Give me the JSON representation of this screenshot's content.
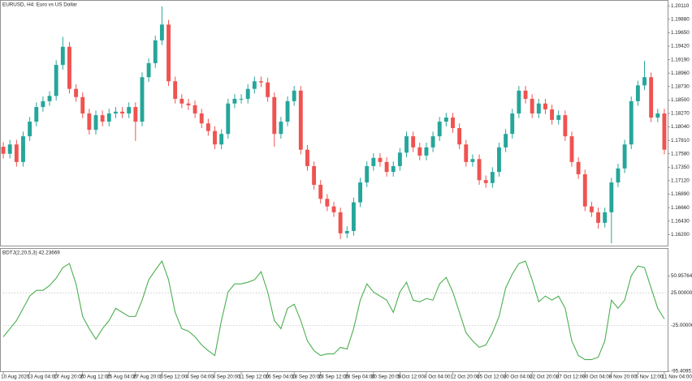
{
  "chart_data": [
    {
      "type": "candlestick",
      "title": "EURUSD, H4:  Euro vs US Dollar",
      "up_color": "#26a69a",
      "down_color": "#ef5350",
      "ylim": [
        1.1601,
        1.2021
      ],
      "yticks": [
        {
          "value": 1.2011,
          "label": "1.20110"
        },
        {
          "value": 1.1988,
          "label": "1.19880"
        },
        {
          "value": 1.1965,
          "label": "1.19650"
        },
        {
          "value": 1.1942,
          "label": "1.19420"
        },
        {
          "value": 1.1919,
          "label": "1.19190"
        },
        {
          "value": 1.1896,
          "label": "1.18960"
        },
        {
          "value": 1.1873,
          "label": "1.18730"
        },
        {
          "value": 1.185,
          "label": "1.18500"
        },
        {
          "value": 1.1827,
          "label": "1.18270"
        },
        {
          "value": 1.1804,
          "label": "1.18040"
        },
        {
          "value": 1.1781,
          "label": "1.17810"
        },
        {
          "value": 1.1758,
          "label": "1.17580"
        },
        {
          "value": 1.1735,
          "label": "1.17350"
        },
        {
          "value": 1.1712,
          "label": "1.17120"
        },
        {
          "value": 1.1689,
          "label": "1.16890"
        },
        {
          "value": 1.1666,
          "label": "1.16660"
        },
        {
          "value": 1.1643,
          "label": "1.16430"
        },
        {
          "value": 1.162,
          "label": "1.16200"
        }
      ],
      "open": [
        1.177,
        1.1758,
        1.1774,
        1.1744,
        1.1788,
        1.1813,
        1.1838,
        1.1848,
        1.1857,
        1.191,
        1.1941,
        1.1869,
        1.1855,
        1.1827,
        1.1799,
        1.1824,
        1.1813,
        1.1827,
        1.183,
        1.1827,
        1.1838,
        1.1813,
        1.1889,
        1.1913,
        1.1952,
        1.1979,
        1.1882,
        1.1852,
        1.1844,
        1.1841,
        1.1827,
        1.181,
        1.1797,
        1.1774,
        1.1792,
        1.1844,
        1.1852,
        1.1852,
        1.1869,
        1.1882,
        1.188,
        1.1855,
        1.1792,
        1.1813,
        1.1848,
        1.1866,
        1.1765,
        1.1737,
        1.1705,
        1.1681,
        1.1668,
        1.1658,
        1.1622,
        1.1626,
        1.1675,
        1.1709,
        1.1737,
        1.1751,
        1.1744,
        1.1727,
        1.1737,
        1.176,
        1.1788,
        1.1769,
        1.1755,
        1.1769,
        1.1788,
        1.1813,
        1.182,
        1.1802,
        1.1774,
        1.1744,
        1.1749,
        1.1713,
        1.1708,
        1.1727,
        1.1769,
        1.1792,
        1.1827,
        1.1866,
        1.1852,
        1.1827,
        1.1844,
        1.1834,
        1.1816,
        1.1824,
        1.1788,
        1.1744,
        1.1723,
        1.1668,
        1.1658,
        1.164,
        1.1658,
        1.1709,
        1.1733,
        1.1774,
        1.1848,
        1.1875,
        1.1889,
        1.182,
        1.1827
      ],
      "high": [
        1.1778,
        1.1782,
        1.1782,
        1.1796,
        1.1821,
        1.1846,
        1.1856,
        1.1865,
        1.1918,
        1.1958,
        1.1949,
        1.1877,
        1.1863,
        1.1835,
        1.1832,
        1.1832,
        1.1835,
        1.1838,
        1.1838,
        1.1846,
        1.1846,
        1.1897,
        1.1921,
        1.196,
        1.201,
        1.1987,
        1.189,
        1.186,
        1.1852,
        1.1849,
        1.1835,
        1.1818,
        1.1805,
        1.18,
        1.1852,
        1.186,
        1.186,
        1.1877,
        1.189,
        1.189,
        1.1888,
        1.1863,
        1.1821,
        1.1856,
        1.1874,
        1.1874,
        1.1773,
        1.1745,
        1.1713,
        1.1689,
        1.1676,
        1.1666,
        1.1634,
        1.1683,
        1.1717,
        1.1745,
        1.1759,
        1.1759,
        1.1752,
        1.1745,
        1.1768,
        1.1796,
        1.1796,
        1.1777,
        1.1777,
        1.1796,
        1.1821,
        1.1828,
        1.1828,
        1.181,
        1.1782,
        1.1757,
        1.1757,
        1.1721,
        1.1735,
        1.1777,
        1.18,
        1.1835,
        1.1874,
        1.1874,
        1.186,
        1.1852,
        1.1852,
        1.1842,
        1.1832,
        1.1832,
        1.1796,
        1.1752,
        1.1731,
        1.1676,
        1.1666,
        1.1666,
        1.1717,
        1.1741,
        1.1782,
        1.1856,
        1.1883,
        1.1917,
        1.1897,
        1.1835,
        1.1835
      ],
      "low": [
        1.175,
        1.175,
        1.1736,
        1.1736,
        1.178,
        1.1805,
        1.183,
        1.184,
        1.1849,
        1.1902,
        1.1861,
        1.1847,
        1.1819,
        1.1791,
        1.1791,
        1.1805,
        1.1805,
        1.1819,
        1.1819,
        1.1819,
        1.178,
        1.1805,
        1.1881,
        1.1905,
        1.1944,
        1.1874,
        1.1844,
        1.1836,
        1.1833,
        1.1819,
        1.1802,
        1.1789,
        1.1766,
        1.1766,
        1.1784,
        1.1836,
        1.1844,
        1.1844,
        1.1861,
        1.1872,
        1.1847,
        1.177,
        1.1784,
        1.1805,
        1.184,
        1.1757,
        1.1729,
        1.1697,
        1.1673,
        1.166,
        1.165,
        1.1612,
        1.1614,
        1.1618,
        1.1667,
        1.1701,
        1.1729,
        1.1736,
        1.1719,
        1.1719,
        1.1729,
        1.1752,
        1.1761,
        1.1747,
        1.1747,
        1.1761,
        1.178,
        1.1805,
        1.1794,
        1.1766,
        1.1736,
        1.1736,
        1.1705,
        1.17,
        1.17,
        1.1719,
        1.1761,
        1.1784,
        1.1819,
        1.1844,
        1.1819,
        1.1819,
        1.1826,
        1.1808,
        1.1808,
        1.178,
        1.1736,
        1.1715,
        1.166,
        1.165,
        1.163,
        1.1632,
        1.1605,
        1.1701,
        1.1725,
        1.1766,
        1.184,
        1.1867,
        1.1812,
        1.1812,
        1.1757
      ],
      "close": [
        1.1758,
        1.1774,
        1.1744,
        1.1788,
        1.1813,
        1.1838,
        1.1848,
        1.1857,
        1.191,
        1.1941,
        1.1869,
        1.1855,
        1.1827,
        1.1799,
        1.1824,
        1.1813,
        1.1827,
        1.183,
        1.1827,
        1.1838,
        1.1813,
        1.1889,
        1.1913,
        1.1952,
        1.1979,
        1.1882,
        1.1852,
        1.1844,
        1.1841,
        1.1827,
        1.181,
        1.1797,
        1.1774,
        1.1792,
        1.1844,
        1.1852,
        1.1852,
        1.1869,
        1.1882,
        1.188,
        1.1855,
        1.1792,
        1.1813,
        1.1848,
        1.1866,
        1.1765,
        1.1737,
        1.1705,
        1.1681,
        1.1668,
        1.1658,
        1.1622,
        1.1626,
        1.1675,
        1.1709,
        1.1737,
        1.1751,
        1.1744,
        1.1727,
        1.1737,
        1.176,
        1.1788,
        1.1769,
        1.1755,
        1.1769,
        1.1788,
        1.1813,
        1.182,
        1.1802,
        1.1774,
        1.1744,
        1.1749,
        1.1713,
        1.1708,
        1.1727,
        1.1769,
        1.1792,
        1.1827,
        1.1866,
        1.1852,
        1.1827,
        1.1844,
        1.1834,
        1.1816,
        1.1824,
        1.1788,
        1.1744,
        1.1723,
        1.1668,
        1.1658,
        1.164,
        1.1658,
        1.1709,
        1.1733,
        1.1774,
        1.1848,
        1.1875,
        1.1889,
        1.182,
        1.1827,
        1.1765
      ]
    },
    {
      "type": "line",
      "title": "BDTJ(2,20,5,3) 42.23669",
      "color": "#4caf50",
      "ylim": [
        -95.40951,
        92.5
      ],
      "yticks": [
        50.95764,
        -95.40951
      ],
      "levels": [
        {
          "value": 25,
          "label": "25.00000"
        },
        {
          "value": -25,
          "label": "-25.00000"
        }
      ],
      "values": [
        -42.5,
        -30,
        -17.5,
        1.25,
        20,
        28.75,
        28.75,
        36.25,
        47.5,
        63.75,
        70,
        38.75,
        -11.25,
        -30,
        -46.25,
        -30,
        -17.5,
        1.25,
        -5,
        -11.25,
        -11.25,
        13.75,
        45,
        60,
        73.75,
        45,
        -5,
        -30,
        -33.75,
        -42.5,
        -55,
        -63.75,
        -71.25,
        -17.5,
        26.25,
        38.75,
        38.75,
        41.25,
        45,
        57.5,
        26.25,
        -17.5,
        -30,
        1.25,
        7.5,
        -17.5,
        -48.75,
        -63.75,
        -71.25,
        -68.75,
        -68.75,
        -58.75,
        -61.25,
        -30,
        13.75,
        38.75,
        26.25,
        20,
        13.75,
        -5,
        26.25,
        41.25,
        13.75,
        11.25,
        16.25,
        13.75,
        38.75,
        48.75,
        26.25,
        -5,
        -36.25,
        -48.75,
        -58.75,
        -55,
        -36.25,
        -11.25,
        32.5,
        53.75,
        70,
        73.75,
        45,
        11.25,
        20,
        13.75,
        20,
        1.25,
        -48.75,
        -71.25,
        -77.5,
        -77.5,
        -73.75,
        -48.75,
        13.75,
        1.25,
        13.75,
        51.25,
        66.25,
        63.75,
        32.5,
        1.25,
        -15
      ],
      "xticks": [
        {
          "value": 0,
          "label": "10 Aug 2020"
        },
        {
          "value": 4,
          "label": "13 Aug 04:00"
        },
        {
          "value": 8,
          "label": "17 Aug 20:00"
        },
        {
          "value": 12,
          "label": "20 Aug 12:00"
        },
        {
          "value": 16,
          "label": "25 Aug 04:00"
        },
        {
          "value": 20,
          "label": "27 Aug 20:00"
        },
        {
          "value": 24,
          "label": "1 Sep 12:00"
        },
        {
          "value": 28,
          "label": "4 Sep 04:00"
        },
        {
          "value": 32,
          "label": "8 Sep 20:00"
        },
        {
          "value": 36,
          "label": "11 Sep 12:00"
        },
        {
          "value": 40,
          "label": "16 Sep 04:00"
        },
        {
          "value": 44,
          "label": "18 Sep 20:00"
        },
        {
          "value": 48,
          "label": "23 Sep 12:00"
        },
        {
          "value": 52,
          "label": "28 Sep 04:00"
        },
        {
          "value": 56,
          "label": "30 Sep 20:00"
        },
        {
          "value": 60,
          "label": "5 Oct 12:00"
        },
        {
          "value": 64,
          "label": "8 Oct 04:00"
        },
        {
          "value": 68,
          "label": "12 Oct 20:00"
        },
        {
          "value": 72,
          "label": "15 Oct 12:00"
        },
        {
          "value": 76,
          "label": "20 Oct 04:00"
        },
        {
          "value": 80,
          "label": "22 Oct 20:00"
        },
        {
          "value": 84,
          "label": "27 Oct 12:00"
        },
        {
          "value": 88,
          "label": "30 Oct 04:00"
        },
        {
          "value": 92,
          "label": "3 Nov 20:00"
        },
        {
          "value": 96,
          "label": "6 Nov 12:00"
        },
        {
          "value": 100,
          "label": "11 Nov 04:00"
        }
      ]
    }
  ]
}
